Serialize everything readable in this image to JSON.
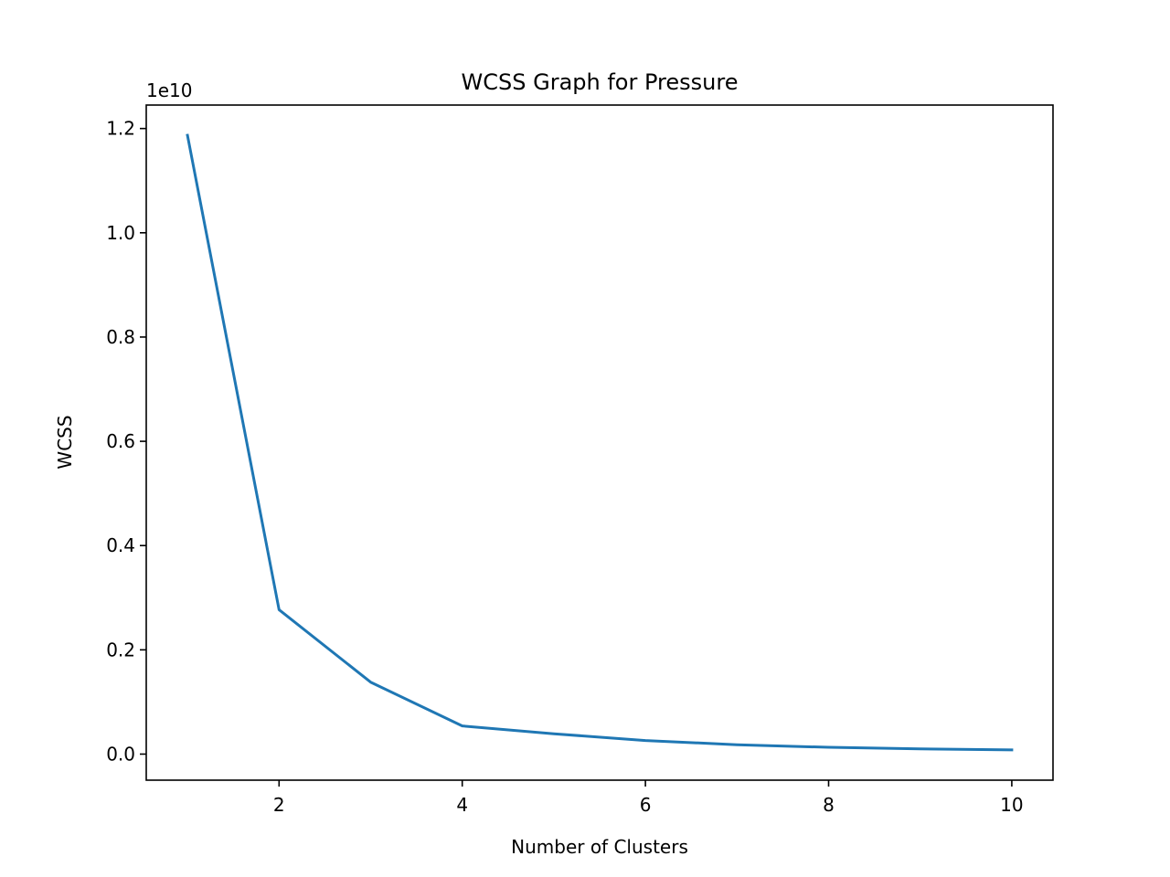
{
  "chart_data": {
    "type": "line",
    "title": "WCSS Graph for Pressure",
    "xlabel": "Number of Clusters",
    "ylabel": "WCSS",
    "y_offset_label": "1e10",
    "xlim": [
      0.55,
      10.45
    ],
    "ylim": [
      -0.05,
      1.245
    ],
    "x_ticks": [
      2,
      4,
      6,
      8,
      10
    ],
    "x_tick_labels": [
      "2",
      "4",
      "6",
      "8",
      "10"
    ],
    "y_ticks": [
      0.0,
      0.2,
      0.4,
      0.6,
      0.8,
      1.0,
      1.2
    ],
    "y_tick_labels": [
      "0.0",
      "0.2",
      "0.4",
      "0.6",
      "0.8",
      "1.0",
      "1.2"
    ],
    "grid": false,
    "series": [
      {
        "color": "#1f77b4",
        "x": [
          1,
          2,
          3,
          4,
          5,
          6,
          7,
          8,
          9,
          10
        ],
        "y": [
          1.187,
          0.277,
          0.138,
          0.054,
          0.039,
          0.026,
          0.018,
          0.013,
          0.01,
          0.008
        ]
      }
    ]
  }
}
